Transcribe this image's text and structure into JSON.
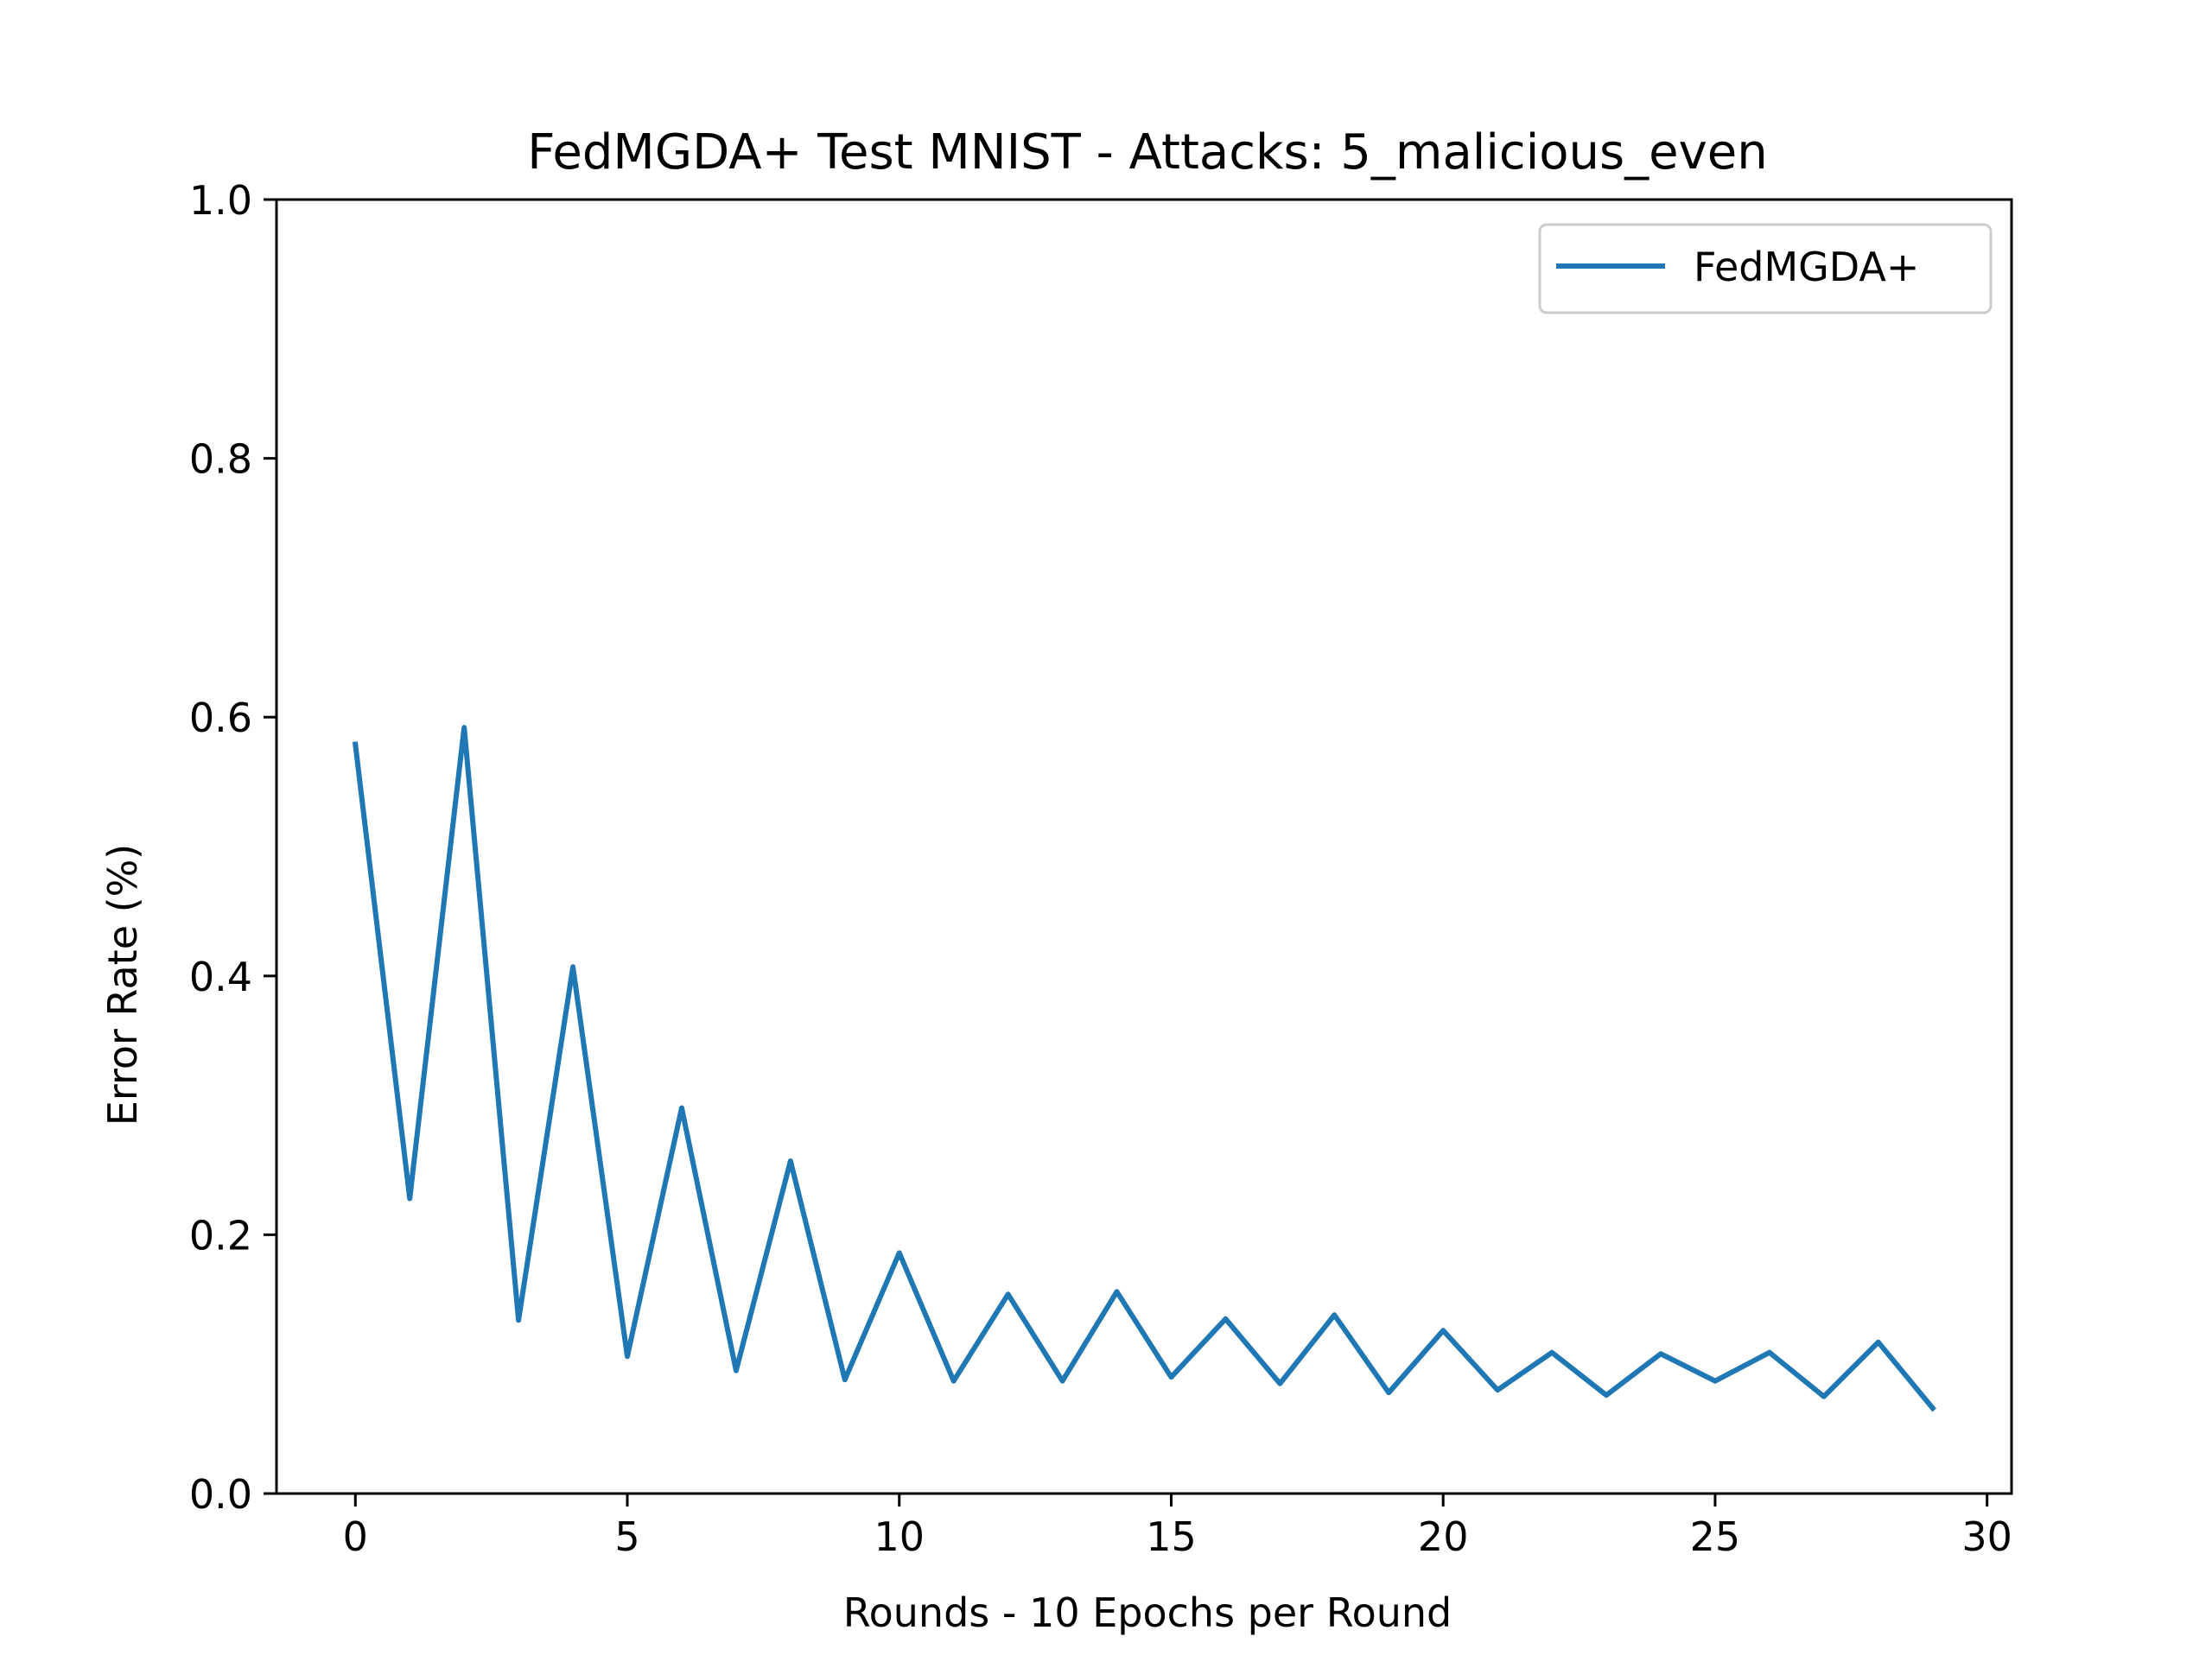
{
  "chart_data": {
    "type": "line",
    "title": "FedMGDA+ Test MNIST - Attacks: 5_malicious_even",
    "xlabel": "Rounds - 10 Epochs per Round",
    "ylabel": "Error Rate (%)",
    "xlim": [
      -1.45,
      30.45
    ],
    "ylim": [
      0.0,
      1.0
    ],
    "xticks": [
      0,
      5,
      10,
      15,
      20,
      25,
      30
    ],
    "xtick_labels": [
      "0",
      "5",
      "10",
      "15",
      "20",
      "25",
      "30"
    ],
    "yticks": [
      0.0,
      0.2,
      0.4,
      0.6,
      0.8,
      1.0
    ],
    "ytick_labels": [
      "0.0",
      "0.2",
      "0.4",
      "0.6",
      "0.8",
      "1.0"
    ],
    "grid": false,
    "legend_position": "upper right",
    "x": [
      0,
      1,
      2,
      3,
      4,
      5,
      6,
      7,
      8,
      9,
      10,
      11,
      12,
      13,
      14,
      15,
      16,
      17,
      18,
      19,
      20,
      21,
      22,
      23,
      24,
      25,
      26,
      27,
      28,
      29
    ],
    "series": [
      {
        "name": "FedMGDA+",
        "color": "#1f77b4",
        "values": [
          0.579,
          0.228,
          0.592,
          0.134,
          0.407,
          0.106,
          0.298,
          0.095,
          0.257,
          0.088,
          0.186,
          0.087,
          0.154,
          0.087,
          0.156,
          0.09,
          0.135,
          0.085,
          0.138,
          0.078,
          0.126,
          0.08,
          0.109,
          0.076,
          0.108,
          0.087,
          0.109,
          0.075,
          0.117,
          0.066
        ]
      }
    ]
  }
}
